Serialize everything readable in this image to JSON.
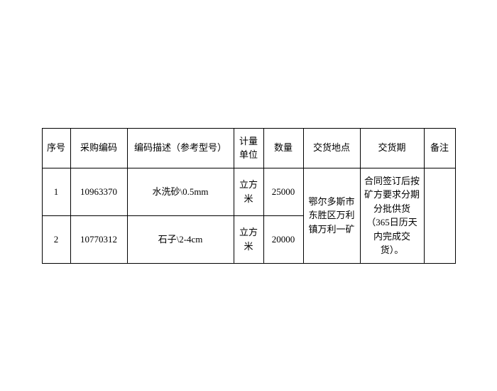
{
  "table": {
    "headers": {
      "seq": "序号",
      "code": "采购编码",
      "desc": "编码描述（参考型号）",
      "unit": "计量单位",
      "qty": "数量",
      "location": "交货地点",
      "delivery": "交货期",
      "remark": "备注"
    },
    "rows": [
      {
        "seq": "1",
        "code": "10963370",
        "desc": "水洗砂\\0.5mm",
        "unit": "立方米",
        "qty": "25000"
      },
      {
        "seq": "2",
        "code": "10770312",
        "desc": "石子\\2-4cm",
        "unit": "立方米",
        "qty": "20000"
      }
    ],
    "merged": {
      "location": "鄂尔多斯市东胜区万利镇万利一矿",
      "delivery": "合同签订后按矿方要求分期分批供货（365日历天内完成交货）。",
      "remark": ""
    }
  },
  "style": {
    "border_color": "#000000",
    "background_color": "#ffffff",
    "text_color": "#000000",
    "font_size": 13
  }
}
